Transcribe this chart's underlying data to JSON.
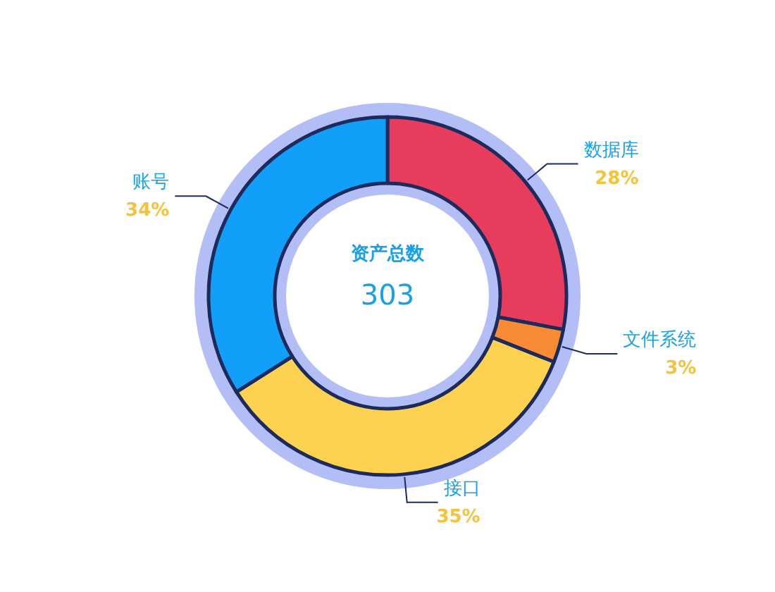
{
  "chart_data": {
    "type": "donut",
    "title": "资产总数",
    "subtitle": "303",
    "categories": [
      "数据库",
      "文件系统",
      "接口",
      "账号"
    ],
    "values": [
      28,
      3,
      35,
      34
    ],
    "colors": [
      "#e83c5c",
      "#f98b35",
      "#fed251",
      "#129ffa"
    ],
    "value_labels": [
      "28%",
      "3%",
      "35%",
      "34%"
    ]
  }
}
